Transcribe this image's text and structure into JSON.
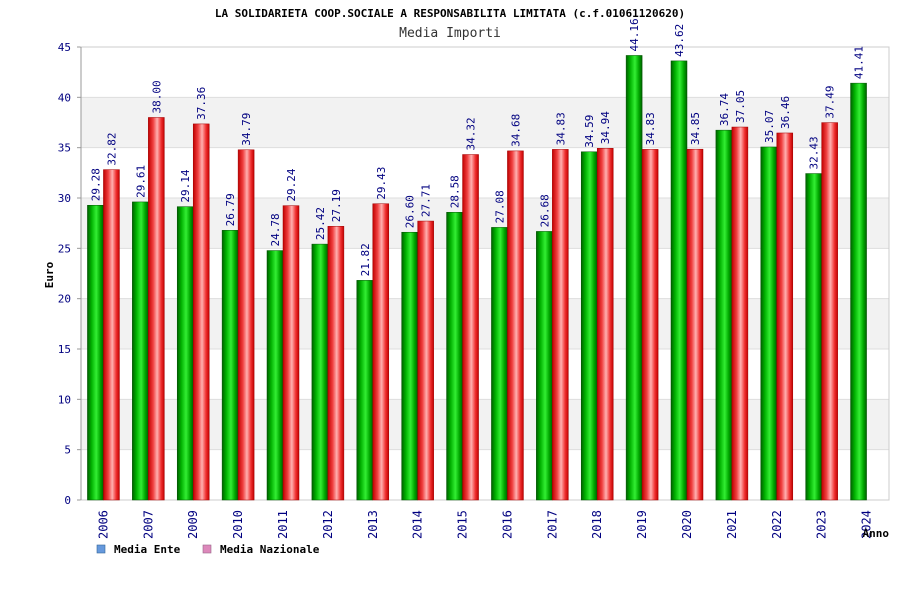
{
  "chart_data": {
    "type": "bar",
    "title": "LA SOLIDARIETA COOP.SOCIALE A RESPONSABILITA LIMITATA (c.f.01061120620)",
    "subtitle": "Media Importi",
    "xlabel": "Anno",
    "ylabel": "Euro",
    "ylim": [
      0,
      45
    ],
    "yticks": [
      "0",
      "5",
      "10",
      "15",
      "20",
      "25",
      "30",
      "35",
      "40",
      "45"
    ],
    "grid": true,
    "legend_position": "bottom-left",
    "categories": [
      "2006",
      "2007",
      "2009",
      "2010",
      "2011",
      "2012",
      "2013",
      "2014",
      "2015",
      "2016",
      "2017",
      "2018",
      "2019",
      "2020",
      "2021",
      "2022",
      "2023",
      "2024"
    ],
    "series": [
      {
        "name": "Media Ente",
        "color": "#00a000",
        "values": [
          29.28,
          29.61,
          29.14,
          26.79,
          24.78,
          25.42,
          21.82,
          26.6,
          28.58,
          27.08,
          26.68,
          34.59,
          44.16,
          43.62,
          36.74,
          35.07,
          32.43,
          41.41
        ],
        "labels": [
          "29.28",
          "29.61",
          "29.14",
          "26.79",
          "24.78",
          "25.42",
          "21.82",
          "26.60",
          "28.58",
          "27.08",
          "26.68",
          "34.59",
          "44.16",
          "43.62",
          "36.74",
          "35.07",
          "32.43",
          "41.41"
        ]
      },
      {
        "name": "Media Nazionale",
        "color": "#e02020",
        "values": [
          32.82,
          38.0,
          37.36,
          34.79,
          29.24,
          27.19,
          29.43,
          27.71,
          34.32,
          34.68,
          34.83,
          34.94,
          34.83,
          34.85,
          37.05,
          36.46,
          37.49,
          null
        ],
        "labels": [
          "32.82",
          "38.00",
          "37.36",
          "34.79",
          "29.24",
          "27.19",
          "29.43",
          "27.71",
          "34.32",
          "34.68",
          "34.83",
          "34.94",
          "34.83",
          "34.85",
          "37.05",
          "36.46",
          "37.49",
          null
        ]
      }
    ],
    "legend": [
      {
        "label": "Media Ente",
        "color": "#6699dd"
      },
      {
        "label": "Media Nazionale",
        "color": "#dd88bb"
      }
    ]
  }
}
